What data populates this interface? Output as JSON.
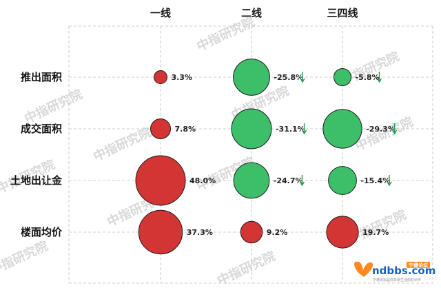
{
  "chart_data": {
    "type": "bubble-matrix",
    "columns": [
      "一线",
      "二线",
      "三四线"
    ],
    "rows": [
      "推出面积",
      "成交面积",
      "土地出让金",
      "楼面均价"
    ],
    "cells": [
      [
        {
          "value": 3.3,
          "label": "3.3%"
        },
        {
          "value": -25.8,
          "label": "-25.8%",
          "down": true
        },
        {
          "value": -5.8,
          "label": "-5.8%",
          "down": true
        }
      ],
      [
        {
          "value": 7.8,
          "label": "7.8%"
        },
        {
          "value": -31.1,
          "label": "-31.1%",
          "down": true
        },
        {
          "value": -29.3,
          "label": "-29.3%",
          "down": true
        }
      ],
      [
        {
          "value": 48.0,
          "label": "48.0%"
        },
        {
          "value": -24.7,
          "label": "-24.7%",
          "down": true
        },
        {
          "value": -15.4,
          "label": "-15.4%",
          "down": true
        }
      ],
      [
        {
          "value": 37.3,
          "label": "37.3%"
        },
        {
          "value": 9.2,
          "label": "9.2%"
        },
        {
          "value": 19.7,
          "label": "19.7%"
        }
      ]
    ],
    "colors": {
      "positive": "#d33535",
      "negative": "#3dbf6a",
      "arrow": "#1f9e4a",
      "grid": "#bdbdbd"
    }
  },
  "watermark": "中指研究院",
  "logo": {
    "text": "ndbbs.com",
    "badge": "宁德论坛",
    "tagline": "宁德论坛是你日常生活的好伙伴"
  }
}
